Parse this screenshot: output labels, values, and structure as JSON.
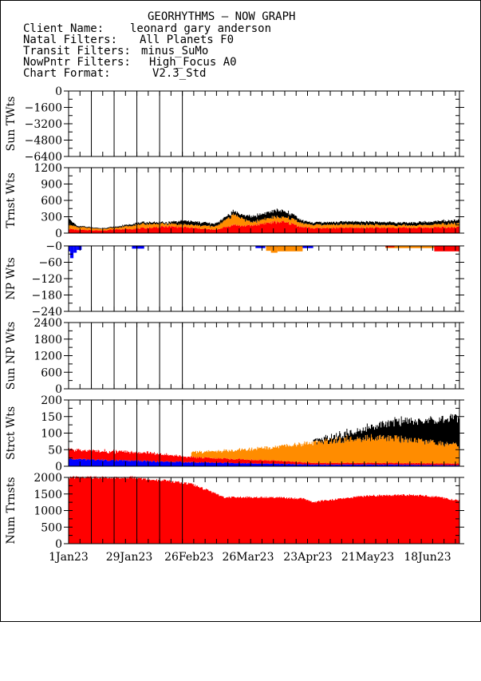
{
  "header": {
    "title": "GEORHYTHMS – NOW GRAPH",
    "rows": [
      {
        "label": "Client Name:",
        "value": "leonard gary anderson"
      },
      {
        "label": "Natal Filters:",
        "value": "All Planets F0"
      },
      {
        "label": "Transit Filters:",
        "value": "minus_SuMo"
      },
      {
        "label": "NowPntr Filters:",
        "value": "High_Focus A0"
      },
      {
        "label": "Chart Format:",
        "value": "V2.3_Std"
      }
    ]
  },
  "colors": {
    "black": "#000000",
    "orange": "#ff8c00",
    "red": "#ff0000",
    "blue": "#0000ff"
  },
  "chart_data": {
    "type": "area",
    "x_range": [
      "1Jan23",
      "30Jun23"
    ],
    "x_tick_labels": [
      "1Jan23",
      "29Jan23",
      "26Feb23",
      "26Mar23",
      "23Apr23",
      "21May23",
      "18Jun23"
    ],
    "panels": [
      {
        "id": "sun-tw",
        "ylabel": "Sun TWts",
        "ylim": [
          -6400,
          0
        ],
        "ticks": [
          "0",
          "−1600",
          "−3200",
          "−4800",
          "−6400"
        ],
        "series": []
      },
      {
        "id": "trnst",
        "ylabel": "Trnst Wts",
        "ylim": [
          0,
          1200
        ],
        "ticks": [
          "1200",
          "900",
          "600",
          "300",
          "0"
        ],
        "stacked": true,
        "series": [
          {
            "color": "red",
            "knots": [
              [
                0,
                80
              ],
              [
                10,
                60
              ],
              [
                40,
                50
              ],
              [
                60,
                70
              ],
              [
                80,
                80
              ],
              [
                100,
                100
              ],
              [
                120,
                120
              ],
              [
                140,
                110
              ],
              [
                180,
                60
              ],
              [
                205,
                160
              ],
              [
                210,
                130
              ],
              [
                225,
                140
              ],
              [
                240,
                180
              ],
              [
                260,
                210
              ],
              [
                275,
                170
              ],
              [
                285,
                120
              ],
              [
                300,
                90
              ],
              [
                350,
                100
              ],
              [
                420,
                100
              ],
              [
                480,
                110
              ]
            ]
          },
          {
            "color": "orange",
            "knots": [
              [
                0,
                90
              ],
              [
                10,
                50
              ],
              [
                40,
                30
              ],
              [
                60,
                30
              ],
              [
                80,
                70
              ],
              [
                100,
                70
              ],
              [
                120,
                50
              ],
              [
                140,
                50
              ],
              [
                180,
                60
              ],
              [
                205,
                200
              ],
              [
                210,
                150
              ],
              [
                225,
                60
              ],
              [
                240,
                80
              ],
              [
                260,
                90
              ],
              [
                275,
                90
              ],
              [
                285,
                70
              ],
              [
                300,
                60
              ],
              [
                350,
                60
              ],
              [
                420,
                40
              ],
              [
                480,
                70
              ]
            ]
          },
          {
            "color": "black",
            "knots": [
              [
                0,
                100
              ],
              [
                10,
                20
              ],
              [
                40,
                10
              ],
              [
                60,
                20
              ],
              [
                80,
                30
              ],
              [
                100,
                30
              ],
              [
                120,
                20
              ],
              [
                140,
                70
              ],
              [
                180,
                50
              ],
              [
                205,
                60
              ],
              [
                210,
                60
              ],
              [
                225,
                100
              ],
              [
                240,
                100
              ],
              [
                260,
                120
              ],
              [
                275,
                80
              ],
              [
                285,
                50
              ],
              [
                300,
                40
              ],
              [
                350,
                50
              ],
              [
                420,
                50
              ],
              [
                480,
                60
              ]
            ]
          }
        ]
      },
      {
        "id": "np",
        "ylabel": "NP Wts",
        "ylim": [
          -240,
          0
        ],
        "ticks": [
          "−0",
          "−60",
          "−120",
          "−180",
          "−240"
        ],
        "series": [
          {
            "color": "blue",
            "segments": [
              [
                0,
                1,
                -20
              ],
              [
                2,
                5,
                -45
              ],
              [
                6,
                9,
                -25
              ],
              [
                10,
                15,
                -15
              ],
              [
                78,
                92,
                -10
              ],
              [
                230,
                241,
                -8
              ],
              [
                243,
                265,
                -8
              ],
              [
                267,
                300,
                -8
              ]
            ]
          },
          {
            "color": "orange",
            "segments": [
              [
                243,
                248,
                -18
              ],
              [
                249,
                256,
                -25
              ],
              [
                257,
                287,
                -20
              ],
              [
                390,
                467,
                -8
              ],
              [
                455,
                480,
                -15
              ]
            ]
          },
          {
            "color": "red",
            "segments": [
              [
                390,
                400,
                -5
              ],
              [
                450,
                480,
                -20
              ]
            ]
          }
        ]
      },
      {
        "id": "sun-np",
        "ylabel": "Sun NP Wts",
        "ylim": [
          0,
          2400
        ],
        "ticks": [
          "2400",
          "1800",
          "1200",
          "600",
          "0"
        ],
        "series": []
      },
      {
        "id": "strct",
        "ylabel": "Strct Wts",
        "ylim": [
          0,
          200
        ],
        "ticks": [
          "200",
          "150",
          "100",
          "50",
          "0"
        ],
        "stacked": true,
        "series": [
          {
            "color": "blue",
            "knots": [
              [
                0,
                22
              ],
              [
                100,
                15
              ],
              [
                150,
                12
              ],
              [
                250,
                8
              ],
              [
                300,
                5
              ],
              [
                400,
                5
              ],
              [
                480,
                3
              ]
            ]
          },
          {
            "color": "red",
            "knots": [
              [
                0,
                28
              ],
              [
                100,
                25
              ],
              [
                150,
                15
              ],
              [
                250,
                10
              ],
              [
                300,
                5
              ],
              [
                400,
                5
              ],
              [
                480,
                5
              ]
            ]
          },
          {
            "color": "orange",
            "knots": [
              [
                0,
                0
              ],
              [
                150,
                0
              ],
              [
                151,
                15
              ],
              [
                200,
                25
              ],
              [
                250,
                40
              ],
              [
                300,
                60
              ],
              [
                350,
                75
              ],
              [
                400,
                75
              ],
              [
                480,
                55
              ]
            ]
          },
          {
            "color": "black",
            "knots": [
              [
                0,
                0
              ],
              [
                300,
                0
              ],
              [
                301,
                5
              ],
              [
                350,
                20
              ],
              [
                400,
                50
              ],
              [
                450,
                65
              ],
              [
                480,
                85
              ]
            ]
          }
        ]
      },
      {
        "id": "num",
        "ylabel": "Num Trnsts",
        "ylim": [
          0,
          2000
        ],
        "ticks": [
          "2000",
          "1500",
          "1000",
          "500",
          "0"
        ],
        "series": [
          {
            "color": "red",
            "knots": [
              [
                0,
                2000
              ],
              [
                80,
                2000
              ],
              [
                100,
                1920
              ],
              [
                120,
                1900
              ],
              [
                150,
                1800
              ],
              [
                170,
                1620
              ],
              [
                190,
                1400
              ],
              [
                250,
                1400
              ],
              [
                290,
                1350
              ],
              [
                300,
                1250
              ],
              [
                330,
                1350
              ],
              [
                370,
                1450
              ],
              [
                420,
                1470
              ],
              [
                450,
                1420
              ],
              [
                480,
                1300
              ]
            ]
          }
        ]
      }
    ]
  }
}
